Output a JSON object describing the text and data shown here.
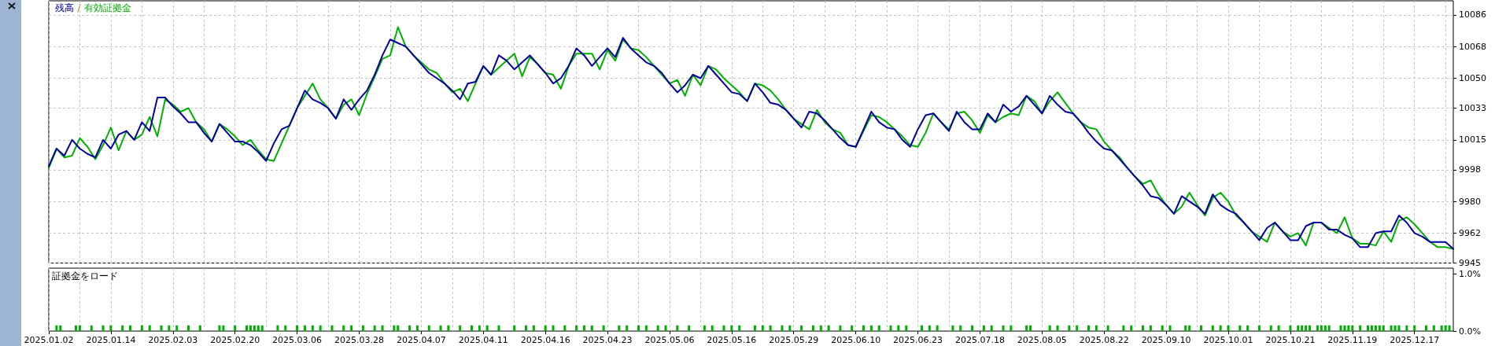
{
  "chart_data": [
    {
      "type": "line",
      "categories": [
        "2025.01.02",
        null,
        null,
        null,
        null,
        null,
        null,
        null,
        "2025.01.14",
        null,
        null,
        null,
        null,
        null,
        null,
        null,
        "2025.02.03",
        null,
        null,
        null,
        null,
        null,
        null,
        null,
        "2025.02.20",
        null,
        null,
        null,
        null,
        null,
        null,
        null,
        "2025.03.06",
        null,
        null,
        null,
        null,
        null,
        null,
        null,
        "2025.03.28",
        null,
        null,
        null,
        null,
        null,
        null,
        null,
        "2025.04.07",
        null,
        null,
        null,
        null,
        null,
        null,
        null,
        "2025.04.11",
        null,
        null,
        null,
        null,
        null,
        null,
        null,
        "2025.04.16",
        null,
        null,
        null,
        null,
        null,
        null,
        null,
        "2025.04.23",
        null,
        null,
        null,
        null,
        null,
        null,
        null,
        "2025.05.06",
        null,
        null,
        null,
        null,
        null,
        null,
        null,
        "2025.05.16",
        null,
        null,
        null,
        null,
        null,
        null,
        null,
        "2025.05.29",
        null,
        null,
        null,
        null,
        null,
        null,
        null,
        "2025.06.10",
        null,
        null,
        null,
        null,
        null,
        null,
        null,
        "2025.06.23",
        null,
        null,
        null,
        null,
        null,
        null,
        null,
        "2025.07.18",
        null,
        null,
        null,
        null,
        null,
        null,
        null,
        "2025.08.05",
        null,
        null,
        null,
        null,
        null,
        null,
        null,
        "2025.08.22",
        null,
        null,
        null,
        null,
        null,
        null,
        null,
        "2025.09.10",
        null,
        null,
        null,
        null,
        null,
        null,
        null,
        "2025.10.01",
        null,
        null,
        null,
        null,
        null,
        null,
        null,
        "2025.10.21",
        null,
        null,
        null,
        null,
        null,
        null,
        null,
        "2025.11.19",
        null,
        null,
        null,
        null,
        null,
        null,
        null,
        "2025.12.17",
        null,
        null,
        null,
        null,
        null
      ],
      "series": [
        {
          "name": "残高",
          "color": "#0000a0",
          "values": [
            10000,
            10010,
            10006,
            10015,
            10010,
            10007,
            10005,
            10015,
            10010,
            10018,
            10020,
            10015,
            10025,
            10020,
            10039,
            10039,
            10034,
            10030,
            10025,
            10025,
            10019,
            10014,
            10024,
            10019,
            10014,
            10014,
            10012,
            10008,
            10003,
            10013,
            10021,
            10023,
            10033,
            10043,
            10038,
            10036,
            10033,
            10027,
            10038,
            10032,
            10038,
            10043,
            10052,
            10063,
            10072,
            10070,
            10068,
            10063,
            10058,
            10053,
            10050,
            10047,
            10043,
            10038,
            10047,
            10048,
            10057,
            10052,
            10063,
            10060,
            10055,
            10059,
            10063,
            10058,
            10053,
            10047,
            10050,
            10057,
            10067,
            10063,
            10057,
            10062,
            10067,
            10062,
            10073,
            10067,
            10063,
            10059,
            10057,
            10053,
            10047,
            10042,
            10046,
            10052,
            10050,
            10057,
            10052,
            10047,
            10042,
            10041,
            10037,
            10047,
            10042,
            10036,
            10035,
            10032,
            10027,
            10022,
            10031,
            10030,
            10026,
            10021,
            10016,
            10012,
            10011,
            10021,
            10031,
            10025,
            10022,
            10021,
            10015,
            10011,
            10021,
            10029,
            10030,
            10025,
            10020,
            10031,
            10025,
            10021,
            10021,
            10030,
            10025,
            10035,
            10031,
            10034,
            10040,
            10035,
            10030,
            10040,
            10035,
            10031,
            10030,
            10025,
            10019,
            10014,
            10010,
            10009,
            10004,
            9999,
            9994,
            9989,
            9983,
            9982,
            9978,
            9973,
            9983,
            9980,
            9977,
            9973,
            9984,
            9978,
            9975,
            9973,
            9968,
            9963,
            9958,
            9965,
            9968,
            9963,
            9958,
            9958,
            9966,
            9968,
            9968,
            9964,
            9964,
            9961,
            9959,
            9954,
            9954,
            9962,
            9963,
            9963,
            9972,
            9968,
            9962,
            9960,
            9957,
            9957,
            9957,
            9953
          ]
        },
        {
          "name": "有効証拠金",
          "color": "#00b000",
          "values": [
            9999,
            10010,
            10005,
            10006,
            10016,
            10011,
            10004,
            10012,
            10022,
            10009,
            10020,
            10015,
            10018,
            10028,
            10017,
            10038,
            10035,
            10031,
            10033,
            10025,
            10021,
            10014,
            10024,
            10021,
            10017,
            10012,
            10015,
            10009,
            10004,
            10003,
            10013,
            10023,
            10033,
            10040,
            10047,
            10038,
            10033,
            10027,
            10035,
            10038,
            10029,
            10041,
            10051,
            10061,
            10063,
            10079,
            10068,
            10063,
            10059,
            10055,
            10053,
            10047,
            10042,
            10044,
            10037,
            10047,
            10057,
            10052,
            10056,
            10060,
            10064,
            10051,
            10062,
            10058,
            10053,
            10052,
            10044,
            10057,
            10064,
            10064,
            10064,
            10055,
            10066,
            10060,
            10072,
            10067,
            10066,
            10062,
            10057,
            10052,
            10047,
            10049,
            10040,
            10052,
            10046,
            10057,
            10055,
            10050,
            10046,
            10042,
            10037,
            10047,
            10046,
            10043,
            10038,
            10032,
            10027,
            10024,
            10021,
            10032,
            10025,
            10021,
            10019,
            10012,
            10011,
            10020,
            10029,
            10028,
            10025,
            10021,
            10017,
            10012,
            10011,
            10019,
            10030,
            10025,
            10021,
            10030,
            10031,
            10026,
            10019,
            10029,
            10025,
            10028,
            10030,
            10029,
            10040,
            10037,
            10030,
            10037,
            10042,
            10036,
            10030,
            10025,
            10022,
            10021,
            10014,
            10009,
            10005,
            9999,
            9994,
            9990,
            9992,
            9984,
            9978,
            9973,
            9977,
            9985,
            9978,
            9972,
            9982,
            9985,
            9980,
            9972,
            9968,
            9963,
            9960,
            9957,
            9968,
            9963,
            9960,
            9962,
            9955,
            9968,
            9968,
            9965,
            9962,
            9971,
            9959,
            9956,
            9956,
            9955,
            9963,
            9957,
            9969,
            9971,
            9967,
            9962,
            9957,
            9954,
            9954,
            9953
          ]
        }
      ],
      "ylim": [
        9945,
        10094
      ],
      "yticks": [
        9945,
        9962,
        9980,
        9998,
        10015,
        10033,
        10050,
        10068,
        10086
      ],
      "grid": true,
      "legend": "top left",
      "tick_labels": "y",
      "annotations": [
        "/"
      ]
    },
    {
      "type": "bar",
      "title": "証拠金をロード",
      "categories": [
        "2025.01.02",
        null,
        null,
        null,
        null,
        null,
        null,
        null,
        null,
        null,
        null,
        null,
        null,
        null,
        null,
        null,
        "2025.01.14",
        null,
        null,
        null,
        null,
        null,
        null,
        null,
        null,
        null,
        null,
        null,
        null,
        null,
        null,
        null,
        "2025.02.03",
        null,
        null,
        null,
        null,
        null,
        null,
        null,
        null,
        null,
        null,
        null,
        null,
        null,
        null,
        null,
        "2025.02.20",
        null,
        null,
        null,
        null,
        null,
        null,
        null,
        null,
        null,
        null,
        null,
        null,
        null,
        null,
        null,
        "2025.03.06",
        null,
        null,
        null,
        null,
        null,
        null,
        null,
        null,
        null,
        null,
        null,
        null,
        null,
        null,
        null,
        "2025.03.28",
        null,
        null,
        null,
        null,
        null,
        null,
        null,
        null,
        null,
        null,
        null,
        null,
        null,
        null,
        null,
        "2025.04.07",
        null,
        null,
        null,
        null,
        null,
        null,
        null,
        null,
        null,
        null,
        null,
        null,
        null,
        null,
        null,
        "2025.04.11",
        null,
        null,
        null,
        null,
        null,
        null,
        null,
        null,
        null,
        null,
        null,
        null,
        null,
        null,
        null,
        "2025.04.16",
        null,
        null,
        null,
        null,
        null,
        null,
        null,
        null,
        null,
        null,
        null,
        null,
        null,
        null,
        null,
        "2025.04.23",
        null,
        null,
        null,
        null,
        null,
        null,
        null,
        null,
        null,
        null,
        null,
        null,
        null,
        null,
        null,
        "2025.05.06",
        null,
        null,
        null,
        null,
        null,
        null,
        null,
        null,
        null,
        null,
        null,
        null,
        null,
        null,
        null,
        "2025.05.16",
        null,
        null,
        null,
        null,
        null,
        null,
        null,
        null,
        null,
        null,
        null,
        null,
        null,
        null,
        null,
        "2025.05.29",
        null,
        null,
        null,
        null,
        null,
        null,
        null,
        null,
        null,
        null,
        null,
        null,
        null,
        null,
        null,
        "2025.06.10",
        null,
        null,
        null,
        null,
        null,
        null,
        null,
        null,
        null,
        null,
        null,
        null,
        null,
        null,
        null,
        "2025.06.23",
        null,
        null,
        null,
        null,
        null,
        null,
        null,
        null,
        null,
        null,
        null,
        null,
        null,
        null,
        null,
        "2025.07.18",
        null,
        null,
        null,
        null,
        null,
        null,
        null,
        null,
        null,
        null,
        null,
        null,
        null,
        null,
        null,
        "2025.08.05",
        null,
        null,
        null,
        null,
        null,
        null,
        null,
        null,
        null,
        null,
        null,
        null,
        null,
        null,
        null,
        "2025.08.22",
        null,
        null,
        null,
        null,
        null,
        null,
        null,
        null,
        null,
        null,
        null,
        null,
        null,
        null,
        null,
        "2025.09.10",
        null,
        null,
        null,
        null,
        null,
        null,
        null,
        null,
        null,
        null,
        null,
        null,
        null,
        null,
        null,
        "2025.10.01",
        null,
        null,
        null,
        null,
        null,
        null,
        null,
        null,
        null,
        null,
        null,
        null,
        null,
        null,
        null,
        "2025.10.21",
        null,
        null,
        null,
        null,
        null,
        null,
        null,
        null,
        null,
        null,
        null,
        null,
        null,
        null,
        null,
        "2025.11.19",
        null,
        null,
        null,
        null,
        null,
        null,
        null,
        null,
        null,
        null,
        null,
        null,
        null,
        null,
        null,
        "2025.12.17",
        null,
        null,
        null,
        null,
        null,
        null,
        null,
        null,
        null,
        null
      ],
      "values": [
        null,
        null,
        0.1,
        0.1,
        null,
        null,
        null,
        0.1,
        0.1,
        null,
        null,
        0.1,
        null,
        null,
        0.1,
        null,
        0.1,
        null,
        null,
        0.1,
        null,
        0.1,
        null,
        null,
        0.1,
        null,
        0.1,
        null,
        null,
        0.1,
        null,
        0.1,
        null,
        0.1,
        null,
        null,
        0.1,
        null,
        null,
        0.1,
        null,
        null,
        null,
        null,
        0.1,
        0.1,
        null,
        null,
        0.1,
        null,
        null,
        0.1,
        0.1,
        0.1,
        0.1,
        0.1,
        null,
        null,
        null,
        0.1,
        null,
        0.1,
        null,
        null,
        0.1,
        null,
        0.1,
        null,
        0.1,
        null,
        0.1,
        null,
        null,
        0.1,
        null,
        null,
        0.1,
        null,
        0.1,
        null,
        null,
        0.1,
        null,
        null,
        0.1,
        null,
        0.1,
        null,
        null,
        0.1,
        0.1,
        null,
        null,
        0.1,
        null,
        0.1,
        null,
        null,
        0.1,
        null,
        null,
        0.1,
        null,
        0.1,
        null,
        null,
        0.1,
        null,
        null,
        0.1,
        null,
        0.1,
        null,
        0.1,
        null,
        null,
        0.1,
        null,
        null,
        null,
        0.1,
        null,
        null,
        0.1,
        null,
        0.1,
        null,
        null,
        0.1,
        null,
        0.1,
        null,
        null,
        0.1,
        null,
        null,
        0.1,
        null,
        0.1,
        null,
        0.1,
        null,
        null,
        0.1,
        null,
        null,
        null,
        0.1,
        null,
        0.1,
        null,
        null,
        0.1,
        null,
        0.1,
        null,
        null,
        0.1,
        null,
        0.1,
        null,
        null,
        0.1,
        null,
        null,
        0.1,
        null,
        null,
        null,
        0.1,
        null,
        0.1,
        null,
        null,
        0.1,
        null,
        0.1,
        null,
        0.1,
        null,
        null,
        null,
        0.1,
        null,
        0.1,
        null,
        0.1,
        null,
        null,
        0.1,
        null,
        0.1,
        null,
        null,
        0.1,
        null,
        null,
        0.1,
        null,
        0.1,
        null,
        0.1,
        null,
        null,
        0.1,
        null,
        null,
        0.1,
        null,
        null,
        0.1,
        null,
        0.1,
        null,
        0.1,
        null,
        null,
        0.1,
        null,
        0.1,
        null,
        0.1,
        null,
        null,
        null,
        0.1,
        null,
        0.1,
        null,
        0.1,
        null,
        null,
        null,
        0.1,
        null,
        0.1,
        null,
        null,
        0.1,
        null,
        null,
        0.1,
        null,
        0.1,
        null,
        null,
        0.1,
        null,
        0.1,
        null,
        null,
        null,
        0.1,
        0.1,
        null,
        null,
        null,
        null,
        0.1,
        null,
        0.1,
        null,
        null,
        0.1,
        null,
        0.1,
        null,
        null,
        0.1,
        null,
        0.1,
        null,
        null,
        0.1,
        null,
        null,
        null,
        0.1,
        null,
        0.1,
        null,
        null,
        0.1,
        null,
        0.1,
        null,
        null,
        0.1,
        null,
        0.1,
        null,
        null,
        null,
        0.1,
        0.1,
        null,
        null,
        0.1,
        null,
        null,
        0.1,
        null,
        0.1,
        null,
        0.1,
        null,
        null,
        0.1,
        null,
        0.1,
        null,
        null,
        0.1,
        null,
        null,
        0.1,
        null,
        0.1,
        null,
        null,
        0.1,
        null,
        0.1,
        0.1,
        0.1,
        0.1,
        null,
        0.1,
        0.1,
        0.1,
        0.1,
        null,
        null,
        0.1,
        0.1,
        0.1,
        0.1,
        null,
        0.1,
        null,
        0.1,
        0.1,
        0.1,
        0.1,
        0.1,
        null,
        0.1,
        0.1,
        0.1,
        null,
        0.1,
        null,
        0.1,
        null,
        null,
        0.1,
        null,
        0.1,
        null,
        0.1,
        0.1,
        0.1,
        null
      ],
      "color": "#00b000",
      "ylim": [
        0,
        1.1
      ],
      "yticks": [
        {
          "value": 0,
          "label": "0.0%"
        },
        {
          "value": 1,
          "label": "1.0%"
        }
      ],
      "grid": "x"
    }
  ]
}
